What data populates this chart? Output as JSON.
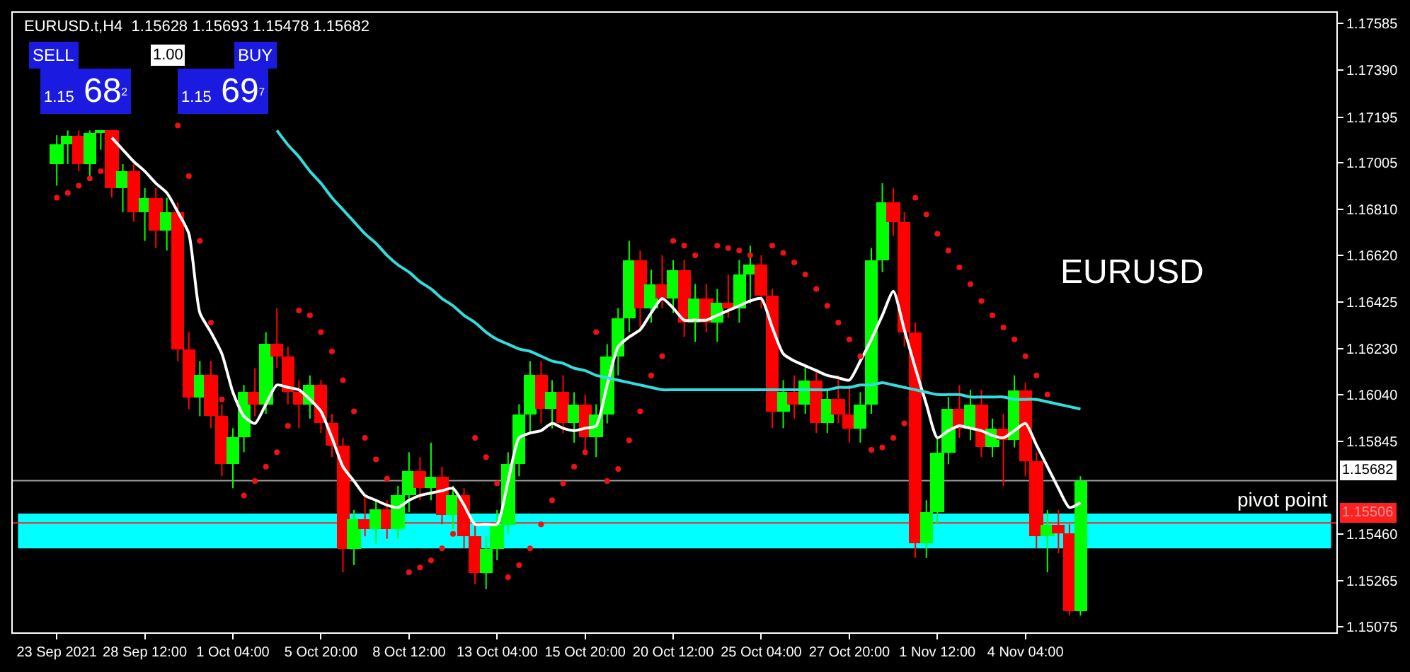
{
  "chart_data": {
    "type": "candlestick",
    "title": "EURUSD.t,H4  1.15628 1.15693 1.15478 1.15682",
    "categories": [
      "23 Sep 2021",
      null,
      null,
      null,
      null,
      null,
      null,
      null,
      "28 Sep 12:00",
      null,
      null,
      null,
      null,
      null,
      null,
      null,
      "1 Oct 04:00",
      null,
      null,
      null,
      null,
      null,
      null,
      null,
      "5 Oct 20:00",
      null,
      null,
      null,
      null,
      null,
      null,
      null,
      "8 Oct 12:00",
      null,
      null,
      null,
      null,
      null,
      null,
      null,
      "13 Oct 04:00",
      null,
      null,
      null,
      null,
      null,
      null,
      null,
      "15 Oct 20:00",
      null,
      null,
      null,
      null,
      null,
      null,
      null,
      "20 Oct 12:00",
      null,
      null,
      null,
      null,
      null,
      null,
      null,
      "25 Oct 04:00",
      null,
      null,
      null,
      null,
      null,
      null,
      null,
      "27 Oct 20:00",
      null,
      null,
      null,
      null,
      null,
      null,
      null,
      "1 Nov 12:00",
      null,
      null,
      null,
      null,
      null,
      null,
      null,
      "4 Nov 04:00",
      null,
      null,
      null,
      null,
      null
    ],
    "ohlc": [
      [
        1.17,
        1.1712,
        1.1691,
        1.1708
      ],
      [
        1.1708,
        1.1714,
        1.17,
        1.1712
      ],
      [
        1.1712,
        1.1714,
        1.1697,
        1.17
      ],
      [
        1.17,
        1.1714,
        1.1694,
        1.1713
      ],
      [
        1.1713,
        1.1714,
        1.1706,
        1.1714
      ],
      [
        1.1714,
        1.1714,
        1.1686,
        1.169
      ],
      [
        1.169,
        1.17,
        1.168,
        1.1697
      ],
      [
        1.1697,
        1.17,
        1.1676,
        1.168
      ],
      [
        1.168,
        1.169,
        1.1668,
        1.1686
      ],
      [
        1.1686,
        1.169,
        1.1665,
        1.1672
      ],
      [
        1.1672,
        1.1686,
        1.1664,
        1.168
      ],
      [
        1.168,
        1.1684,
        1.1618,
        1.1623
      ],
      [
        1.1623,
        1.163,
        1.1598,
        1.1603
      ],
      [
        1.1603,
        1.1618,
        1.1595,
        1.1612
      ],
      [
        1.1612,
        1.1618,
        1.159,
        1.1595
      ],
      [
        1.1595,
        1.16,
        1.157,
        1.1575
      ],
      [
        1.1575,
        1.159,
        1.1565,
        1.1586
      ],
      [
        1.1586,
        1.1608,
        1.158,
        1.1605
      ],
      [
        1.1605,
        1.1615,
        1.1595,
        1.16
      ],
      [
        1.16,
        1.163,
        1.1596,
        1.1625
      ],
      [
        1.1625,
        1.164,
        1.1615,
        1.162
      ],
      [
        1.162,
        1.1624,
        1.16,
        1.1605
      ],
      [
        1.1605,
        1.161,
        1.159,
        1.16
      ],
      [
        1.16,
        1.1612,
        1.1594,
        1.1608
      ],
      [
        1.1608,
        1.161,
        1.1588,
        1.1592
      ],
      [
        1.1592,
        1.1596,
        1.1578,
        1.1583
      ],
      [
        1.1583,
        1.1586,
        1.153,
        1.154
      ],
      [
        1.154,
        1.1556,
        1.1533,
        1.1552
      ],
      [
        1.1552,
        1.1562,
        1.1545,
        1.1548
      ],
      [
        1.1548,
        1.156,
        1.1542,
        1.1556
      ],
      [
        1.1556,
        1.156,
        1.1544,
        1.1548
      ],
      [
        1.1548,
        1.1566,
        1.1544,
        1.1562
      ],
      [
        1.1562,
        1.158,
        1.1555,
        1.1572
      ],
      [
        1.1572,
        1.1578,
        1.156,
        1.1565
      ],
      [
        1.1565,
        1.1584,
        1.156,
        1.157
      ],
      [
        1.157,
        1.1574,
        1.155,
        1.1554
      ],
      [
        1.1554,
        1.1566,
        1.1548,
        1.1562
      ],
      [
        1.1562,
        1.1565,
        1.154,
        1.1545
      ],
      [
        1.1545,
        1.155,
        1.1525,
        1.153
      ],
      [
        1.153,
        1.1545,
        1.1523,
        1.154
      ],
      [
        1.154,
        1.1556,
        1.1535,
        1.155
      ],
      [
        1.155,
        1.158,
        1.1546,
        1.1575
      ],
      [
        1.1575,
        1.16,
        1.157,
        1.1596
      ],
      [
        1.1596,
        1.1618,
        1.1588,
        1.1612
      ],
      [
        1.1612,
        1.1618,
        1.1592,
        1.1598
      ],
      [
        1.1598,
        1.161,
        1.159,
        1.1605
      ],
      [
        1.1605,
        1.1612,
        1.1588,
        1.1592
      ],
      [
        1.1592,
        1.1605,
        1.1584,
        1.16
      ],
      [
        1.16,
        1.1604,
        1.158,
        1.1586
      ],
      [
        1.1586,
        1.16,
        1.1578,
        1.1596
      ],
      [
        1.1596,
        1.1625,
        1.1592,
        1.162
      ],
      [
        1.162,
        1.164,
        1.1612,
        1.1636
      ],
      [
        1.1636,
        1.1668,
        1.163,
        1.166
      ],
      [
        1.166,
        1.1664,
        1.1632,
        1.164
      ],
      [
        1.164,
        1.1656,
        1.1634,
        1.165
      ],
      [
        1.165,
        1.1662,
        1.164,
        1.1644
      ],
      [
        1.1644,
        1.166,
        1.1638,
        1.1656
      ],
      [
        1.1656,
        1.166,
        1.1628,
        1.1634
      ],
      [
        1.1634,
        1.165,
        1.1626,
        1.1644
      ],
      [
        1.1644,
        1.165,
        1.163,
        1.1634
      ],
      [
        1.1634,
        1.1648,
        1.1626,
        1.1642
      ],
      [
        1.1642,
        1.1654,
        1.1636,
        1.164
      ],
      [
        1.164,
        1.166,
        1.1634,
        1.1654
      ],
      [
        1.1654,
        1.1666,
        1.1642,
        1.1658
      ],
      [
        1.1658,
        1.1662,
        1.164,
        1.1645
      ],
      [
        1.1645,
        1.1648,
        1.159,
        1.1597
      ],
      [
        1.1597,
        1.161,
        1.159,
        1.1605
      ],
      [
        1.1605,
        1.1612,
        1.1594,
        1.16
      ],
      [
        1.16,
        1.1616,
        1.1596,
        1.161
      ],
      [
        1.161,
        1.1614,
        1.1588,
        1.1592
      ],
      [
        1.1592,
        1.1606,
        1.1588,
        1.1602
      ],
      [
        1.1602,
        1.1612,
        1.1592,
        1.1596
      ],
      [
        1.1596,
        1.1608,
        1.1584,
        1.159
      ],
      [
        1.159,
        1.1605,
        1.1584,
        1.16
      ],
      [
        1.16,
        1.1665,
        1.1596,
        1.166
      ],
      [
        1.166,
        1.1692,
        1.1655,
        1.1684
      ],
      [
        1.1684,
        1.169,
        1.167,
        1.1676
      ],
      [
        1.1676,
        1.168,
        1.1624,
        1.163
      ],
      [
        1.163,
        1.1634,
        1.1536,
        1.1542
      ],
      [
        1.1542,
        1.156,
        1.1536,
        1.1555
      ],
      [
        1.1555,
        1.1586,
        1.155,
        1.158
      ],
      [
        1.158,
        1.1603,
        1.1575,
        1.1598
      ],
      [
        1.1598,
        1.1608,
        1.1586,
        1.159
      ],
      [
        1.159,
        1.1606,
        1.1585,
        1.16
      ],
      [
        1.16,
        1.1606,
        1.1578,
        1.1582
      ],
      [
        1.1582,
        1.1594,
        1.1578,
        1.159
      ],
      [
        1.159,
        1.1596,
        1.1566,
        1.1585
      ],
      [
        1.1585,
        1.1612,
        1.1582,
        1.1606
      ],
      [
        1.1606,
        1.1609,
        1.157,
        1.1576
      ],
      [
        1.1576,
        1.158,
        1.154,
        1.1545
      ],
      [
        1.1545,
        1.1556,
        1.153,
        1.155
      ],
      [
        1.155,
        1.1556,
        1.1538,
        1.1546
      ],
      [
        1.1546,
        1.155,
        1.1512,
        1.1514
      ],
      [
        1.1514,
        1.157,
        1.1512,
        1.1568
      ]
    ],
    "series": [
      {
        "type": "line",
        "color": "#ffffff",
        "values": [
          null,
          null,
          null,
          null,
          null,
          1.1711,
          1.1706,
          1.1701,
          1.1697,
          1.1692,
          1.1688,
          1.168,
          1.1671,
          1.1638,
          1.163,
          1.1621,
          1.1605,
          1.1595,
          1.1592,
          1.16,
          1.1608,
          1.1607,
          1.1606,
          1.1602,
          1.1597,
          1.1586,
          1.1574,
          1.1568,
          1.1562,
          1.156,
          1.1558,
          1.1557,
          1.156,
          1.1562,
          1.1563,
          1.1564,
          1.1565,
          1.1558,
          1.155,
          1.155,
          1.155,
          1.1568,
          1.1586,
          1.1588,
          1.1589,
          1.1592,
          1.159,
          1.1589,
          1.159,
          1.1591,
          1.1608,
          1.1624,
          1.1628,
          1.1631,
          1.1638,
          1.1644,
          1.164,
          1.1635,
          1.1635,
          1.1635,
          1.1637,
          1.1639,
          1.1641,
          1.1643,
          1.1644,
          1.1632,
          1.1621,
          1.1618,
          1.1616,
          1.1614,
          1.1612,
          1.1611,
          1.161,
          1.1618,
          1.1627,
          1.1637,
          1.1647,
          1.1631,
          1.1615,
          1.16,
          1.1586,
          1.1589,
          1.1591,
          1.159,
          1.1589,
          1.1587,
          1.1586,
          1.1589,
          1.1592,
          1.1583,
          1.1574,
          1.1565,
          1.1557,
          1.1559
        ]
      },
      {
        "type": "line",
        "color": "#33dddd",
        "values": [
          null,
          null,
          null,
          null,
          null,
          null,
          null,
          null,
          null,
          null,
          null,
          null,
          null,
          null,
          null,
          null,
          null,
          null,
          null,
          null,
          1.1714,
          1.1708,
          1.1703,
          1.1697,
          1.1692,
          1.1686,
          1.1681,
          1.1676,
          1.1671,
          1.1667,
          1.1662,
          1.1658,
          1.1655,
          1.1651,
          1.1648,
          1.1644,
          1.1641,
          1.1637,
          1.1634,
          1.163,
          1.1627,
          1.1625,
          1.1623,
          1.1622,
          1.162,
          1.1618,
          1.1617,
          1.1615,
          1.1614,
          1.1612,
          1.1611,
          1.161,
          1.1609,
          1.1608,
          1.1607,
          1.1606,
          1.1606,
          1.1606,
          1.1606,
          1.1606,
          1.1606,
          1.1606,
          1.1606,
          1.1606,
          1.1606,
          1.1606,
          1.1606,
          1.1606,
          1.1606,
          1.1606,
          1.1606,
          1.1607,
          1.1607,
          1.1608,
          1.1608,
          1.1609,
          1.1608,
          1.1607,
          1.1606,
          1.1605,
          1.1604,
          1.1604,
          1.1604,
          1.1603,
          1.1603,
          1.1603,
          1.1603,
          1.1602,
          1.1602,
          1.1602,
          1.1601,
          1.16,
          1.1599,
          1.1598
        ]
      },
      {
        "type": "scatter",
        "marker": "circle",
        "color": "#ee1111",
        "values": [
          1.1686,
          1.1688,
          1.1691,
          1.1694,
          1.1697,
          null,
          null,
          null,
          null,
          null,
          null,
          1.1716,
          1.1695,
          1.1668,
          1.1634,
          1.1602,
          null,
          1.1562,
          1.1568,
          1.1574,
          1.158,
          1.1591,
          1.1639,
          1.1637,
          1.163,
          1.1622,
          1.161,
          1.1597,
          1.1586,
          1.1577,
          1.1569,
          null,
          1.153,
          1.1532,
          1.1535,
          1.154,
          1.1546,
          1.1549,
          1.1586,
          1.1578,
          1.1567,
          1.1528,
          1.1533,
          1.154,
          1.155,
          1.156,
          1.1567,
          1.1574,
          1.158,
          1.163,
          1.1568,
          1.1573,
          1.1585,
          1.1597,
          1.1612,
          1.162,
          1.1668,
          1.1666,
          1.1662,
          null,
          1.1666,
          1.1665,
          1.1664,
          1.1662,
          null,
          1.1666,
          1.1663,
          1.1659,
          1.1654,
          1.1648,
          1.1641,
          1.1634,
          1.1627,
          1.162,
          1.1581,
          1.1582,
          1.1586,
          1.1592,
          1.1686,
          1.1679,
          1.1671,
          1.1664,
          1.1657,
          1.165,
          1.1643,
          1.1637,
          1.1632,
          1.1627,
          1.162,
          1.1612,
          1.1604,
          null,
          null,
          null
        ]
      }
    ],
    "ylim": [
      1.1505,
      1.1763
    ],
    "yticks": [
      1.17585,
      {
        "value": 1.1739,
        "label": "1.17390"
      },
      1.17195,
      1.17005,
      {
        "value": 1.1681,
        "label": "1.16810"
      },
      {
        "value": 1.1662,
        "label": "1.16620"
      },
      1.16425,
      {
        "value": 1.1623,
        "label": "1.16230"
      },
      {
        "value": 1.1604,
        "label": "1.16040"
      },
      1.15845,
      {
        "value": 1.1546,
        "label": "1.15460"
      },
      1.15265,
      1.15075
    ],
    "ref_lines": [
      {
        "axis": "y",
        "value": 1.15682,
        "label": "1.15682",
        "color": "#a0a0a0"
      },
      {
        "axis": "y",
        "value": 1.15506,
        "label": "1.15506",
        "color": "#ff2020"
      }
    ],
    "bands": [
      {
        "axis": "y",
        "from": 1.154,
        "to": 1.15545,
        "label": "pivot point",
        "color": "#00ffff"
      }
    ],
    "annotations": [
      "SELL",
      "1.00",
      "BUY",
      "1.15 68$^{2}$",
      "1.15 69$^{7}$",
      "EURUSD"
    ],
    "grid": false
  }
}
